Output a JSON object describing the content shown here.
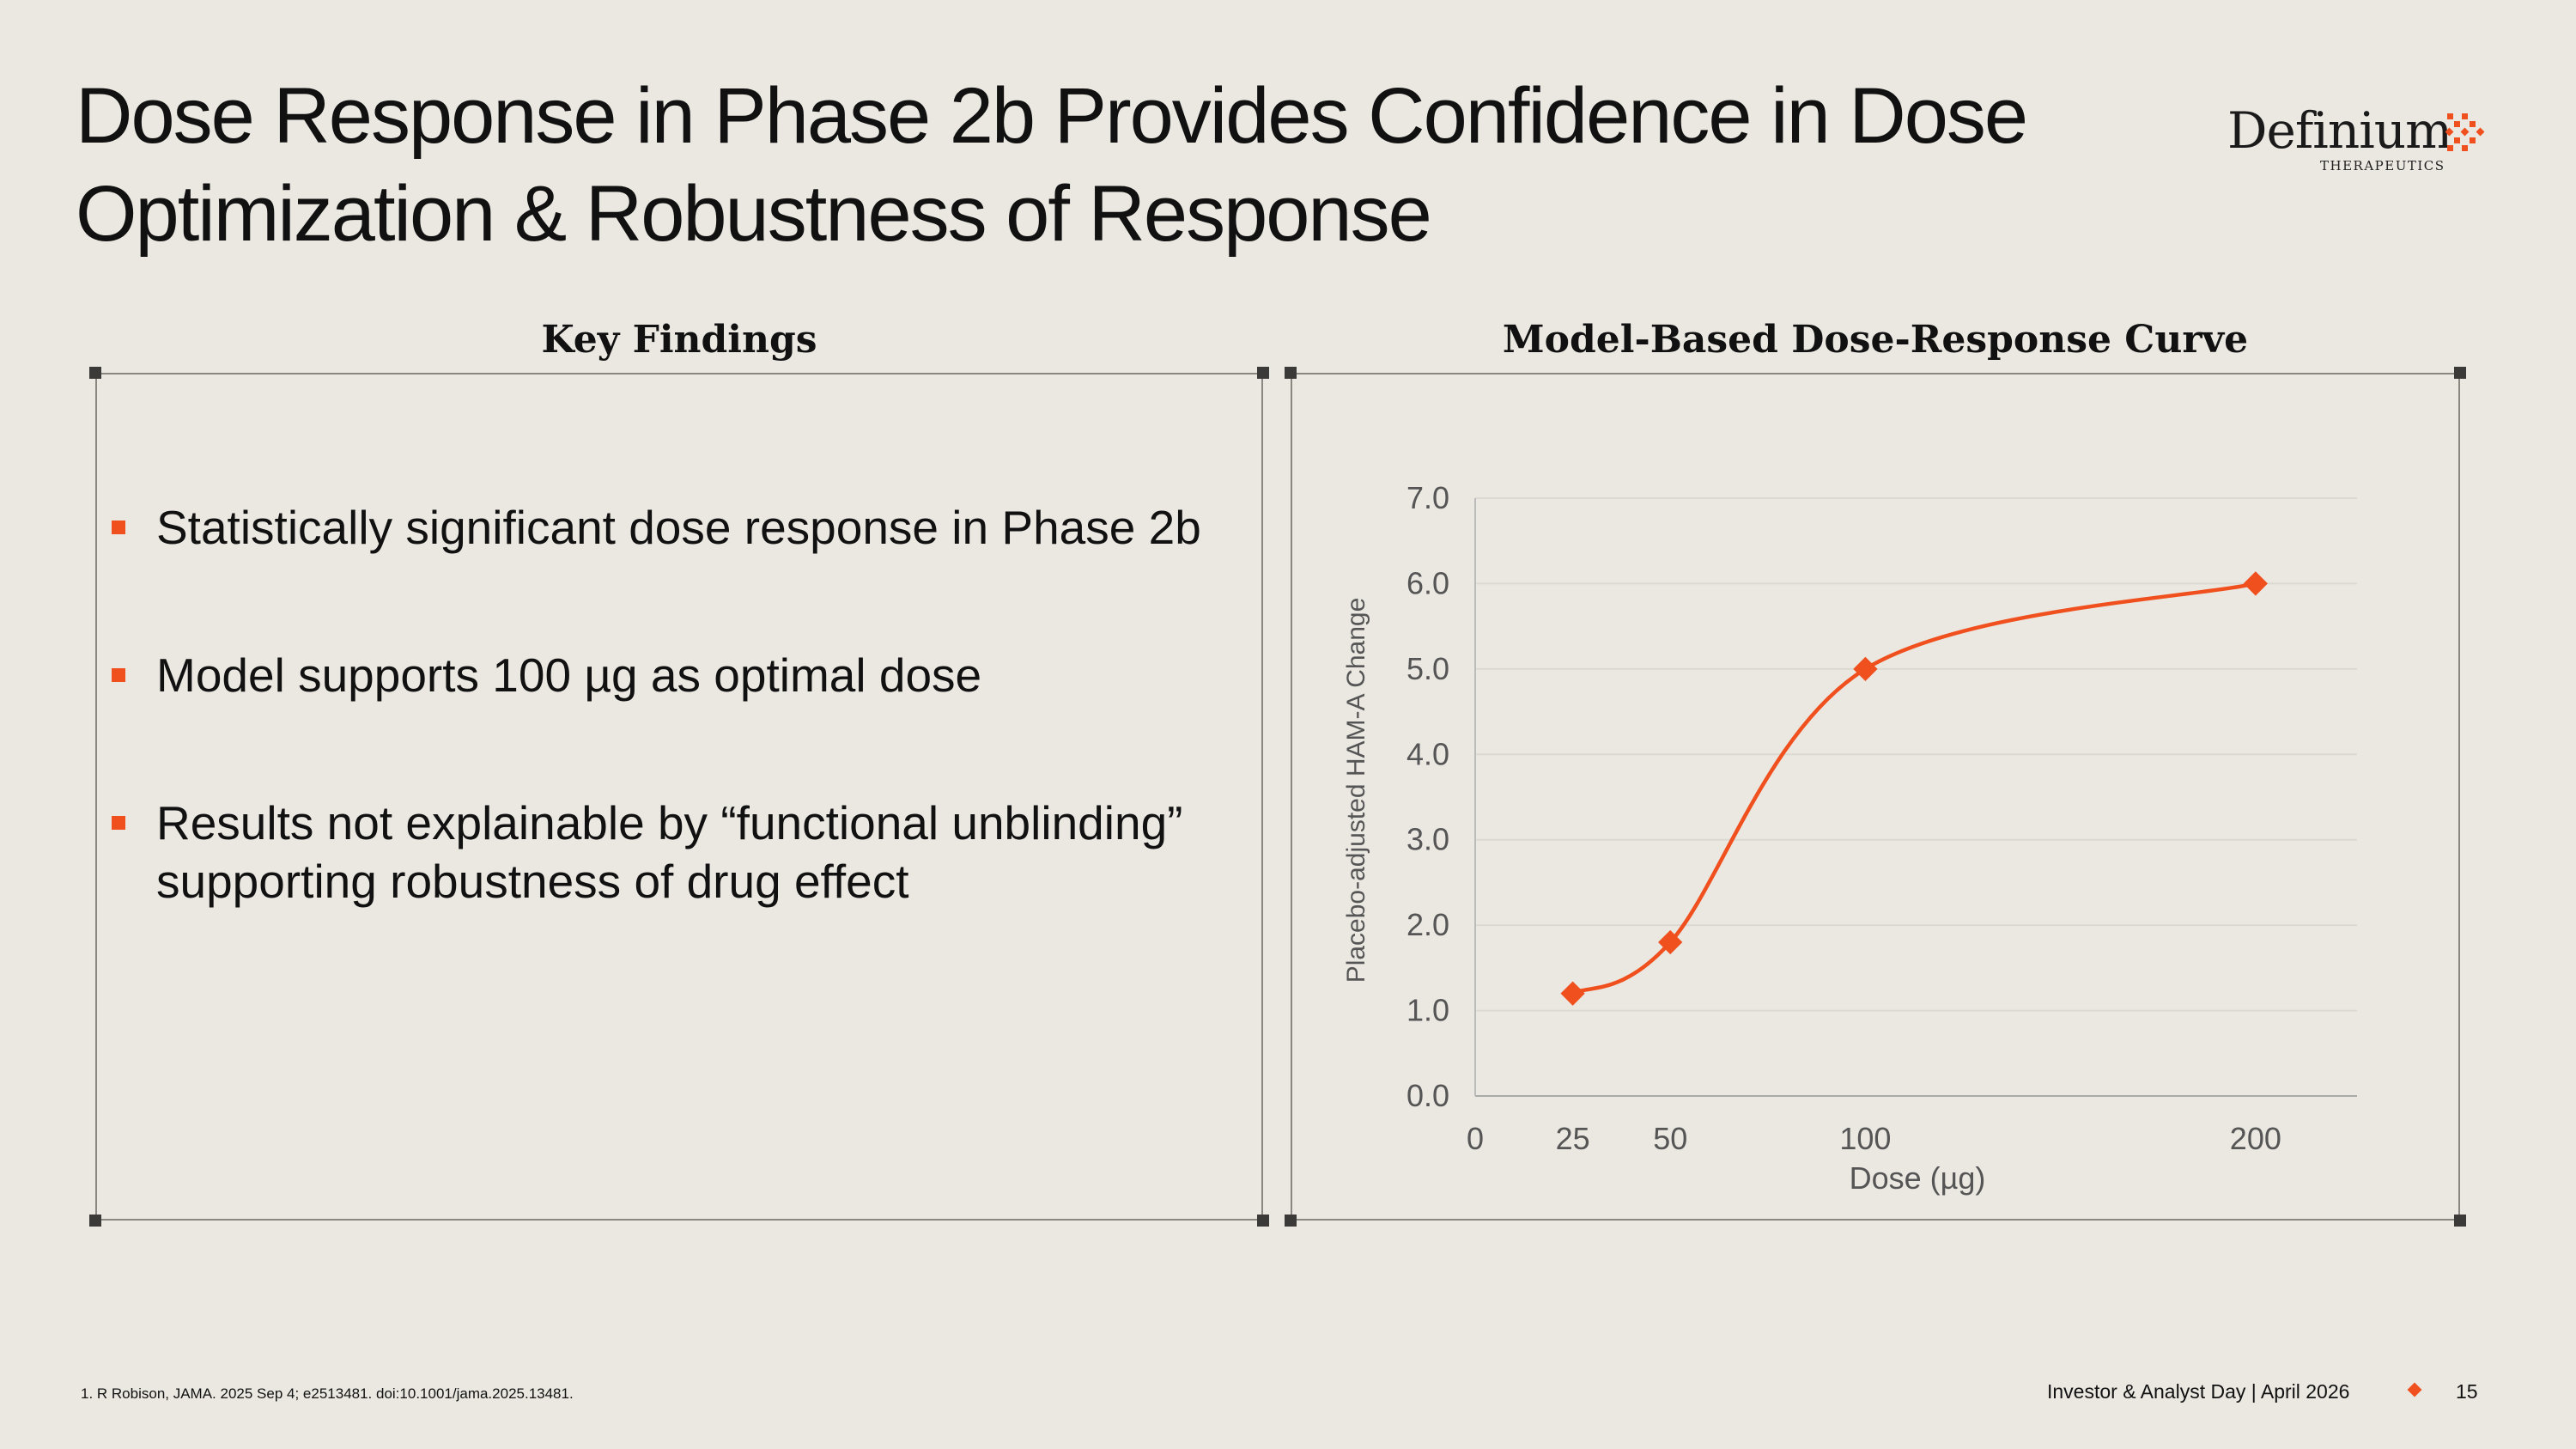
{
  "title": "Dose Response in Phase 2b Provides Confidence in Dose Optimization & Robustness of Response",
  "logo": {
    "name": "Definium",
    "sub": "THERAPEUTICS",
    "color": "#f0501e"
  },
  "left_panel": {
    "heading": "Key Findings",
    "bullets": [
      "Statistically significant dose response in Phase 2b",
      "Model supports 100 µg as optimal dose",
      "Results not explainable by “functional unblinding” supporting robustness of drug effect"
    ]
  },
  "right_panel": {
    "heading": "Model-Based Dose-Response Curve"
  },
  "chart_data": {
    "type": "line",
    "title": "Model-Based Dose-Response Curve",
    "xlabel": "Dose (µg)",
    "ylabel": "Placebo-adjusted HAM-A Change",
    "x": [
      25,
      50,
      100,
      200
    ],
    "y": [
      1.2,
      1.8,
      5.0,
      6.0
    ],
    "xticks": [
      "0",
      "25",
      "50",
      "100",
      "200"
    ],
    "yticks": [
      "0.0",
      "1.0",
      "2.0",
      "3.0",
      "4.0",
      "5.0",
      "6.0",
      "7.0"
    ],
    "xlim": [
      0,
      226
    ],
    "ylim": [
      0,
      7
    ],
    "grid": true,
    "smooth": true,
    "marker": "diamond",
    "color": "#f0501e"
  },
  "footer": {
    "footnote": "1.    R Robison, JAMA. 2025 Sep 4; e2513481. doi:10.1001/jama.2025.13481.",
    "event": "Investor & Analyst Day | April 2026",
    "page": "15"
  }
}
